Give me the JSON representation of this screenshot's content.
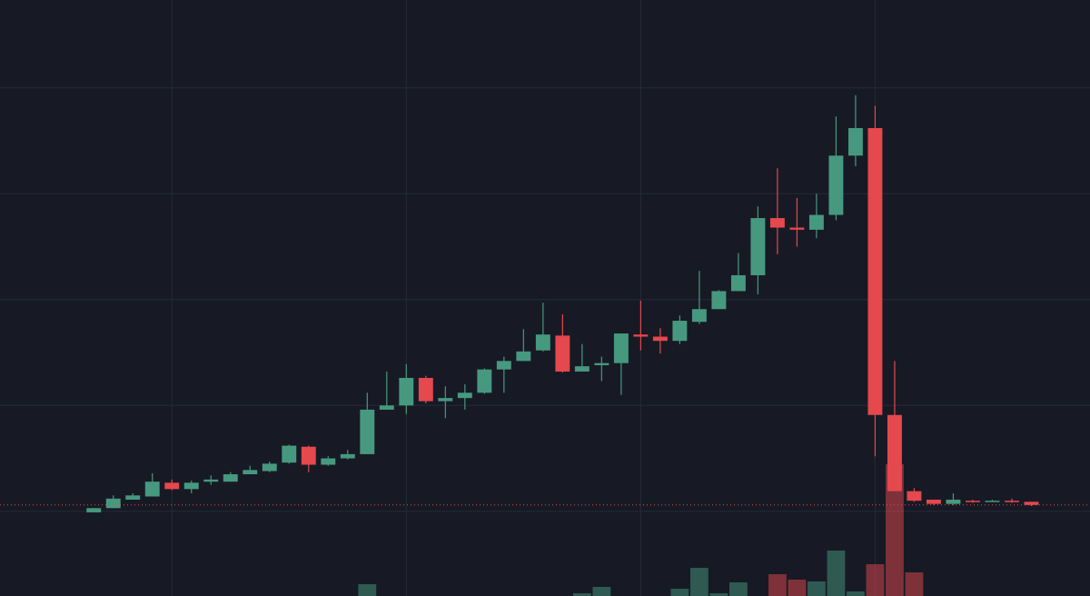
{
  "chart_data": {
    "type": "candlestick",
    "x": [
      0,
      1,
      2,
      3,
      4,
      5,
      6,
      7,
      8,
      9,
      10,
      11,
      12,
      13,
      14,
      15,
      16,
      17,
      18,
      19,
      20,
      21,
      22,
      23,
      24,
      25,
      26,
      27,
      28,
      29,
      30,
      31,
      32,
      33,
      34,
      35,
      36,
      37,
      38,
      39,
      40,
      41,
      42,
      43,
      44,
      45,
      46,
      47,
      48
    ],
    "open": [
      -0.01,
      0.03,
      0.11,
      0.14,
      0.27,
      0.21,
      0.28,
      0.28,
      0.35,
      0.38,
      0.46,
      0.61,
      0.44,
      0.5,
      0.54,
      0.96,
      1.0,
      1.26,
      1.04,
      1.07,
      1.12,
      1.34,
      1.42,
      1.52,
      1.66,
      1.32,
      1.38,
      1.4,
      1.67,
      1.65,
      1.61,
      1.79,
      1.91,
      2.08,
      2.23,
      2.77,
      2.68,
      2.66,
      2.8,
      3.36,
      3.62,
      0.91,
      0.19,
      0.11,
      0.07,
      0.1,
      0.09,
      0.1,
      0.09
    ],
    "high": [
      0.03,
      0.15,
      0.17,
      0.36,
      0.3,
      0.29,
      0.34,
      0.37,
      0.43,
      0.47,
      0.63,
      0.62,
      0.52,
      0.58,
      1.12,
      1.32,
      1.39,
      1.28,
      1.18,
      1.2,
      1.35,
      1.46,
      1.72,
      1.97,
      1.86,
      1.58,
      1.46,
      1.68,
      1.99,
      1.73,
      1.85,
      2.27,
      2.09,
      2.44,
      2.88,
      3.24,
      2.96,
      3.0,
      3.73,
      3.93,
      3.83,
      1.42,
      0.22,
      0.11,
      0.17,
      0.11,
      0.11,
      0.12,
      0.09
    ],
    "low": [
      -0.01,
      0.03,
      0.11,
      0.14,
      0.2,
      0.17,
      0.25,
      0.28,
      0.35,
      0.37,
      0.45,
      0.37,
      0.43,
      0.49,
      0.54,
      0.96,
      0.92,
      1.02,
      0.88,
      0.96,
      1.11,
      1.12,
      1.42,
      1.51,
      1.31,
      1.32,
      1.23,
      1.1,
      1.52,
      1.49,
      1.58,
      1.77,
      1.91,
      2.08,
      2.05,
      2.43,
      2.5,
      2.58,
      2.75,
      3.26,
      0.52,
      0.19,
      0.09,
      0.06,
      0.06,
      0.08,
      0.09,
      0.08,
      0.05
    ],
    "close": [
      0.03,
      0.12,
      0.15,
      0.28,
      0.21,
      0.27,
      0.3,
      0.35,
      0.39,
      0.45,
      0.62,
      0.44,
      0.5,
      0.54,
      0.96,
      1.0,
      1.26,
      1.04,
      1.07,
      1.12,
      1.34,
      1.42,
      1.51,
      1.67,
      1.32,
      1.37,
      1.4,
      1.68,
      1.65,
      1.61,
      1.8,
      1.91,
      2.08,
      2.23,
      2.77,
      2.68,
      2.66,
      2.8,
      3.36,
      3.62,
      0.91,
      0.19,
      0.1,
      0.07,
      0.11,
      0.09,
      0.1,
      0.09,
      0.06
    ],
    "volume": [
      null,
      null,
      null,
      null,
      null,
      null,
      null,
      null,
      null,
      null,
      null,
      null,
      null,
      null,
      13,
      null,
      null,
      null,
      null,
      null,
      null,
      null,
      null,
      null,
      null,
      3,
      10,
      null,
      null,
      null,
      8,
      31,
      3,
      15,
      null,
      24,
      18,
      16,
      50,
      5,
      35,
      145,
      26,
      null,
      null,
      null,
      null,
      null,
      null
    ],
    "up_color": "#46997f",
    "down_color": "#e5484d",
    "xlim": [
      -4.8,
      51.0
    ],
    "xticks": [
      4,
      16,
      28,
      40
    ],
    "ylim": [
      -0.8,
      4.83
    ],
    "yticks": [
      0,
      1,
      2,
      3,
      4
    ],
    "volume_lim": [
      0,
      656
    ],
    "price_line": 0.06,
    "grid": true
  }
}
